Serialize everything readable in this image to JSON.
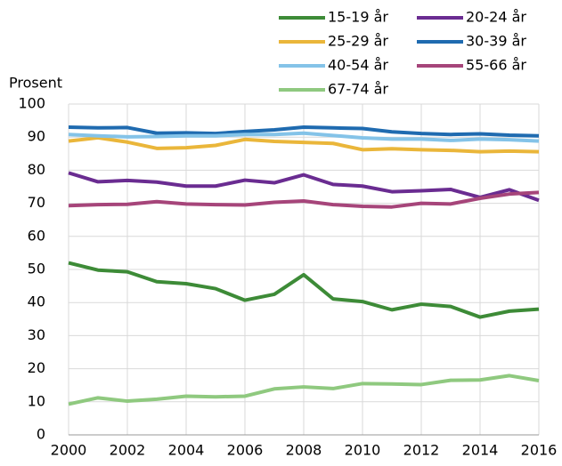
{
  "chart_data": {
    "type": "line",
    "y_label": "Prosent",
    "x": [
      2000,
      2001,
      2002,
      2003,
      2004,
      2005,
      2006,
      2007,
      2008,
      2009,
      2010,
      2011,
      2012,
      2013,
      2014,
      2015,
      2016
    ],
    "xlim": [
      2000,
      2016
    ],
    "xticks": [
      2000,
      2002,
      2004,
      2006,
      2008,
      2010,
      2012,
      2014,
      2016
    ],
    "ylim": [
      0,
      100
    ],
    "yticks": [
      0,
      10,
      20,
      30,
      40,
      50,
      60,
      70,
      80,
      90,
      100
    ],
    "grid": true,
    "legend": "top-right",
    "series": [
      {
        "name": "15-19 år",
        "color": "#3d8b37",
        "values": [
          52,
          49.8,
          49.3,
          46.3,
          45.7,
          44.2,
          40.7,
          42.5,
          48.4,
          41.1,
          40.3,
          37.8,
          39.5,
          38.8,
          35.6,
          37.4,
          38.0
        ]
      },
      {
        "name": "20-24 år",
        "color": "#6a2c91",
        "values": [
          79.2,
          76.5,
          76.9,
          76.4,
          75.2,
          75.2,
          77.0,
          76.2,
          78.6,
          75.7,
          75.2,
          73.5,
          73.8,
          74.2,
          71.8,
          74.1,
          70.9
        ]
      },
      {
        "name": "25-29 år",
        "color": "#eab63a",
        "values": [
          88.8,
          89.8,
          88.5,
          86.6,
          86.8,
          87.5,
          89.3,
          88.7,
          88.4,
          88.1,
          86.2,
          86.5,
          86.2,
          86.0,
          85.6,
          85.8,
          85.6
        ]
      },
      {
        "name": "30-39 år",
        "color": "#1f6bb0",
        "values": [
          93,
          92.8,
          92.9,
          91.2,
          91.3,
          91.1,
          91.7,
          92.2,
          93.0,
          92.8,
          92.6,
          91.6,
          91.1,
          90.8,
          91.0,
          90.6,
          90.4
        ]
      },
      {
        "name": "40-54 år",
        "color": "#84c3e8",
        "values": [
          90.8,
          90.4,
          90.1,
          90.2,
          90.4,
          90.4,
          90.8,
          90.8,
          91.2,
          90.5,
          89.8,
          89.4,
          89.4,
          89.0,
          89.4,
          89.2,
          88.8
        ]
      },
      {
        "name": "55-66 år",
        "color": "#a6457a",
        "values": [
          69.3,
          69.6,
          69.7,
          70.5,
          69.8,
          69.6,
          69.5,
          70.3,
          70.7,
          69.6,
          69.1,
          68.9,
          70.0,
          69.8,
          71.5,
          72.8,
          73.3
        ]
      },
      {
        "name": "67-74 år",
        "color": "#8fc97f",
        "values": [
          9.3,
          11.2,
          10.2,
          10.8,
          11.7,
          11.5,
          11.7,
          13.9,
          14.5,
          14.0,
          15.5,
          15.4,
          15.2,
          16.5,
          16.6,
          17.9,
          16.4
        ]
      }
    ]
  }
}
